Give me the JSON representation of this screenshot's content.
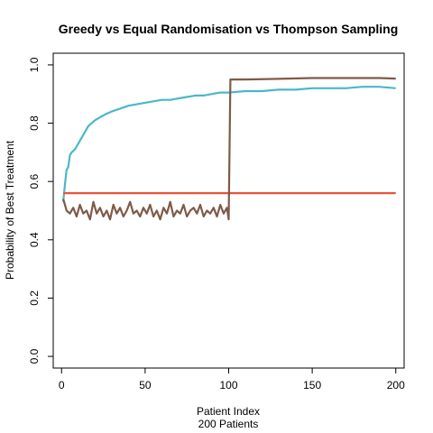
{
  "chart_data": {
    "type": "line",
    "title": "Greedy vs Equal Randomisation vs Thompson Sampling",
    "xlabel": "Patient Index",
    "xlabel_sub": "200 Patients",
    "ylabel": "Probability of Best Treatment",
    "xlim": [
      -5,
      205
    ],
    "ylim": [
      -0.04,
      1.04
    ],
    "x_ticks": [
      0,
      50,
      100,
      150,
      200
    ],
    "y_ticks": [
      0.0,
      0.2,
      0.4,
      0.6,
      0.8,
      1.0
    ],
    "y_tick_labels": [
      "0.0",
      "0.2",
      "0.4",
      "0.6",
      "0.8",
      "1.0"
    ],
    "grid": false,
    "legend": "none",
    "series": [
      {
        "color": "#4bb7c9",
        "points": [
          [
            1,
            0.53
          ],
          [
            2,
            0.59
          ],
          [
            3,
            0.64
          ],
          [
            4,
            0.65
          ],
          [
            5,
            0.69
          ],
          [
            6,
            0.7
          ],
          [
            8,
            0.71
          ],
          [
            10,
            0.73
          ],
          [
            12,
            0.75
          ],
          [
            14,
            0.77
          ],
          [
            16,
            0.79
          ],
          [
            18,
            0.8
          ],
          [
            20,
            0.81
          ],
          [
            23,
            0.82
          ],
          [
            26,
            0.83
          ],
          [
            30,
            0.84
          ],
          [
            35,
            0.85
          ],
          [
            40,
            0.86
          ],
          [
            45,
            0.865
          ],
          [
            50,
            0.87
          ],
          [
            55,
            0.875
          ],
          [
            60,
            0.88
          ],
          [
            65,
            0.88
          ],
          [
            70,
            0.885
          ],
          [
            75,
            0.89
          ],
          [
            80,
            0.895
          ],
          [
            85,
            0.895
          ],
          [
            90,
            0.9
          ],
          [
            95,
            0.905
          ],
          [
            100,
            0.905
          ],
          [
            110,
            0.91
          ],
          [
            120,
            0.91
          ],
          [
            130,
            0.915
          ],
          [
            140,
            0.915
          ],
          [
            150,
            0.92
          ],
          [
            160,
            0.92
          ],
          [
            170,
            0.92
          ],
          [
            180,
            0.925
          ],
          [
            190,
            0.925
          ],
          [
            200,
            0.92
          ]
        ]
      },
      {
        "color": "#e8543a",
        "points": [
          [
            1,
            0.56
          ],
          [
            200,
            0.56
          ]
        ]
      },
      {
        "color": "#7f5a48",
        "points": [
          [
            1,
            0.54
          ],
          [
            2,
            0.52
          ],
          [
            3,
            0.5
          ],
          [
            5,
            0.49
          ],
          [
            7,
            0.51
          ],
          [
            9,
            0.48
          ],
          [
            11,
            0.52
          ],
          [
            13,
            0.49
          ],
          [
            15,
            0.5
          ],
          [
            17,
            0.47
          ],
          [
            19,
            0.53
          ],
          [
            21,
            0.49
          ],
          [
            23,
            0.51
          ],
          [
            25,
            0.48
          ],
          [
            27,
            0.5
          ],
          [
            29,
            0.47
          ],
          [
            31,
            0.52
          ],
          [
            33,
            0.49
          ],
          [
            35,
            0.51
          ],
          [
            37,
            0.48
          ],
          [
            39,
            0.5
          ],
          [
            41,
            0.53
          ],
          [
            43,
            0.49
          ],
          [
            45,
            0.5
          ],
          [
            47,
            0.48
          ],
          [
            49,
            0.51
          ],
          [
            51,
            0.49
          ],
          [
            53,
            0.52
          ],
          [
            55,
            0.48
          ],
          [
            57,
            0.5
          ],
          [
            59,
            0.47
          ],
          [
            61,
            0.51
          ],
          [
            63,
            0.49
          ],
          [
            65,
            0.53
          ],
          [
            67,
            0.48
          ],
          [
            69,
            0.5
          ],
          [
            71,
            0.49
          ],
          [
            73,
            0.52
          ],
          [
            75,
            0.48
          ],
          [
            77,
            0.5
          ],
          [
            79,
            0.51
          ],
          [
            81,
            0.49
          ],
          [
            83,
            0.52
          ],
          [
            85,
            0.48
          ],
          [
            87,
            0.5
          ],
          [
            89,
            0.49
          ],
          [
            91,
            0.51
          ],
          [
            93,
            0.48
          ],
          [
            95,
            0.52
          ],
          [
            97,
            0.49
          ],
          [
            99,
            0.51
          ],
          [
            100,
            0.47
          ],
          [
            101,
            0.95
          ],
          [
            110,
            0.95
          ],
          [
            130,
            0.952
          ],
          [
            150,
            0.955
          ],
          [
            170,
            0.955
          ],
          [
            190,
            0.955
          ],
          [
            200,
            0.953
          ]
        ]
      }
    ]
  }
}
